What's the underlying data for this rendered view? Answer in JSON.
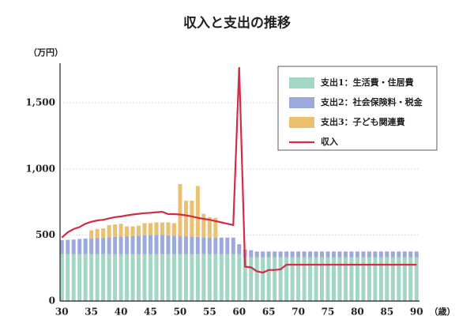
{
  "chart_data": {
    "type": "bar",
    "stacked": true,
    "title": "収入と支出の推移",
    "y_label": "（万円）",
    "x_label": "（歳）",
    "x": [
      30,
      31,
      32,
      33,
      34,
      35,
      36,
      37,
      38,
      39,
      40,
      41,
      42,
      43,
      44,
      45,
      46,
      47,
      48,
      49,
      50,
      51,
      52,
      53,
      54,
      55,
      56,
      57,
      58,
      59,
      60,
      61,
      62,
      63,
      64,
      65,
      66,
      67,
      68,
      69,
      70,
      71,
      72,
      73,
      74,
      75,
      76,
      77,
      78,
      79,
      80,
      81,
      82,
      83,
      84,
      85,
      86,
      87,
      88,
      89,
      90
    ],
    "xlim": [
      29.7,
      90.5
    ],
    "xticks": [
      30,
      35,
      40,
      45,
      50,
      55,
      60,
      65,
      70,
      75,
      80,
      85,
      90
    ],
    "ylim": [
      0,
      1800
    ],
    "yticks": [
      0,
      500,
      {
        "value": 1000,
        "label": "1,000"
      },
      {
        "value": 1500,
        "label": "1,500"
      }
    ],
    "grid": true,
    "legend": "upper right",
    "series": [
      {
        "name": "支出1：生活費・住居費",
        "type": "bar",
        "color": "#a3d6c3",
        "values": [
          355,
          355,
          355,
          355,
          355,
          355,
          355,
          355,
          355,
          355,
          355,
          355,
          355,
          355,
          355,
          355,
          355,
          355,
          355,
          355,
          355,
          355,
          355,
          355,
          355,
          355,
          355,
          355,
          355,
          355,
          355,
          330,
          330,
          330,
          330,
          330,
          330,
          330,
          330,
          330,
          330,
          330,
          330,
          330,
          330,
          330,
          330,
          330,
          330,
          330,
          330,
          330,
          330,
          330,
          330,
          330,
          330,
          330,
          330,
          330,
          330
        ]
      },
      {
        "name": "支出2：社会保険料・税金",
        "type": "bar",
        "color": "#9ca9dc",
        "values": [
          105,
          108,
          110,
          115,
          118,
          120,
          122,
          125,
          128,
          130,
          132,
          135,
          137,
          140,
          142,
          145,
          145,
          145,
          143,
          140,
          138,
          135,
          133,
          130,
          128,
          125,
          125,
          125,
          125,
          125,
          75,
          60,
          55,
          45,
          45,
          45,
          45,
          45,
          45,
          45,
          45,
          45,
          45,
          45,
          45,
          45,
          45,
          45,
          45,
          45,
          45,
          45,
          45,
          45,
          45,
          45,
          45,
          45,
          45,
          45,
          45
        ]
      },
      {
        "name": "支出3：子ども関連費",
        "type": "bar",
        "color": "#ebc070",
        "values": [
          null,
          null,
          null,
          null,
          null,
          60,
          68,
          70,
          92,
          95,
          98,
          75,
          73,
          75,
          93,
          90,
          95,
          95,
          97,
          95,
          392,
          270,
          272,
          385,
          177,
          155,
          150,
          null,
          null,
          null,
          null,
          null,
          null,
          null,
          null,
          null,
          null,
          null,
          null,
          null,
          null,
          null,
          null,
          null,
          null,
          null,
          null,
          null,
          null,
          null,
          null,
          null,
          null,
          null,
          null,
          null,
          null,
          null,
          null,
          null,
          null
        ]
      },
      {
        "name": "収入",
        "type": "line",
        "color": "#d42a45",
        "values": [
          480,
          520,
          545,
          560,
          585,
          600,
          610,
          615,
          625,
          635,
          640,
          648,
          655,
          660,
          665,
          668,
          672,
          675,
          658,
          658,
          655,
          648,
          640,
          630,
          622,
          615,
          605,
          595,
          585,
          575,
          1770,
          260,
          255,
          225,
          215,
          235,
          235,
          240,
          275,
          275,
          275,
          275,
          275,
          275,
          275,
          275,
          275,
          275,
          275,
          275,
          275,
          275,
          275,
          275,
          275,
          275,
          275,
          275,
          275,
          275,
          275
        ]
      }
    ]
  }
}
